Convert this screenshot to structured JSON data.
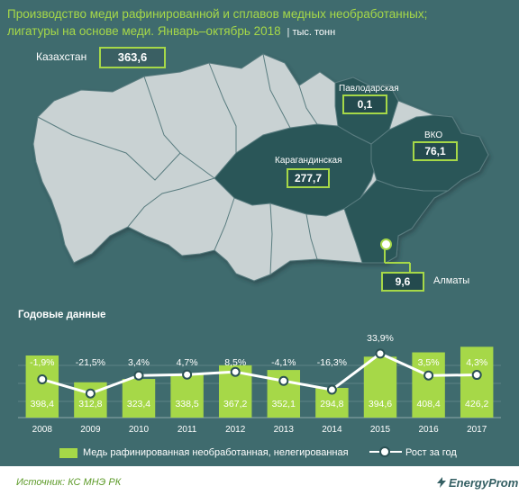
{
  "title": {
    "line1": "Производство меди рафинированной и сплавов медных необработанных;",
    "line2": "лигатуры на основе меди. Январь–октябрь 2018",
    "unit": "тыс. тонн"
  },
  "map": {
    "kazakhstan_label": "Казахстан",
    "kazakhstan_value": "363,6",
    "regions": [
      {
        "name": "Павлодарская",
        "value": "0,1"
      },
      {
        "name": "ВКО",
        "value": "76,1"
      },
      {
        "name": "Карагандинская",
        "value": "277,7"
      },
      {
        "name": "Алматы",
        "value": "9,6"
      }
    ],
    "colors": {
      "base": "#c9d2d3",
      "highlight": "#2b5659",
      "border": "#5a7d80"
    }
  },
  "section_title": "Годовые данные",
  "chart_data": {
    "type": "bar",
    "categories": [
      "2008",
      "2009",
      "2010",
      "2011",
      "2012",
      "2013",
      "2014",
      "2015",
      "2016",
      "2017"
    ],
    "series": [
      {
        "name": "Медь рафинированная необработанная, нелегированная",
        "type": "bar",
        "values": [
          398.4,
          312.8,
          323.4,
          338.5,
          367.2,
          352.1,
          294.8,
          394.6,
          408.4,
          426.2
        ],
        "labels": [
          "398,4",
          "312,8",
          "323,4",
          "338,5",
          "367,2",
          "352,1",
          "294,8",
          "394,6",
          "408,4",
          "426,2"
        ],
        "color": "#a6d848"
      },
      {
        "name": "Рост за год",
        "type": "line",
        "values": [
          -1.9,
          -21.5,
          3.4,
          4.7,
          8.5,
          -4.1,
          -16.3,
          33.9,
          3.5,
          4.3
        ],
        "labels": [
          "-1,9%",
          "-21,5%",
          "3,4%",
          "4,7%",
          "8,5%",
          "-4,1%",
          "-16,3%",
          "33,9%",
          "3,5%",
          "4,3%"
        ],
        "color": "#ffffff"
      }
    ],
    "grid": true,
    "legend": "bottom"
  },
  "footer": {
    "source": "Источник: КС МНЭ РК",
    "brand": "EnergyProm"
  }
}
